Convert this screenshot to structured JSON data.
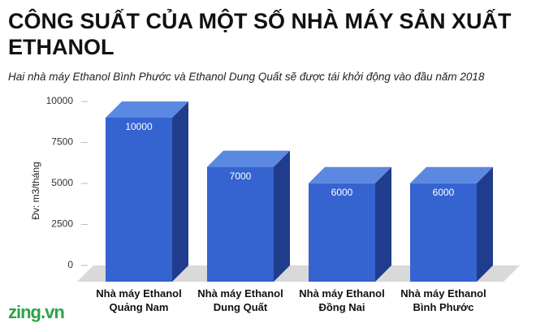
{
  "chart_data": {
    "type": "bar3d",
    "title": "CÔNG SUẤT CỦA MỘT SỐ NHÀ MÁY SẢN XUẤT ETHANOL",
    "subtitle": "Hai nhà máy Ethanol Bình Phước và Ethanol Dung Quất sẽ được tái khởi động vào đầu năm 2018",
    "y_label": "Đv: m3/tháng",
    "categories": [
      "Nhà máy Ethanol Quảng Nam",
      "Nhà máy Ethanol Dung Quất",
      "Nhà máy Ethanol Đồng Nai",
      "Nhà máy Ethanol Bình Phước"
    ],
    "values": [
      10000,
      7000,
      6000,
      6000
    ],
    "color": "#3563d0",
    "ylim": [
      0,
      10000
    ],
    "yticks": [
      0,
      2500,
      5000,
      7500,
      10000
    ],
    "grid": false,
    "logo": "zing.vn"
  }
}
